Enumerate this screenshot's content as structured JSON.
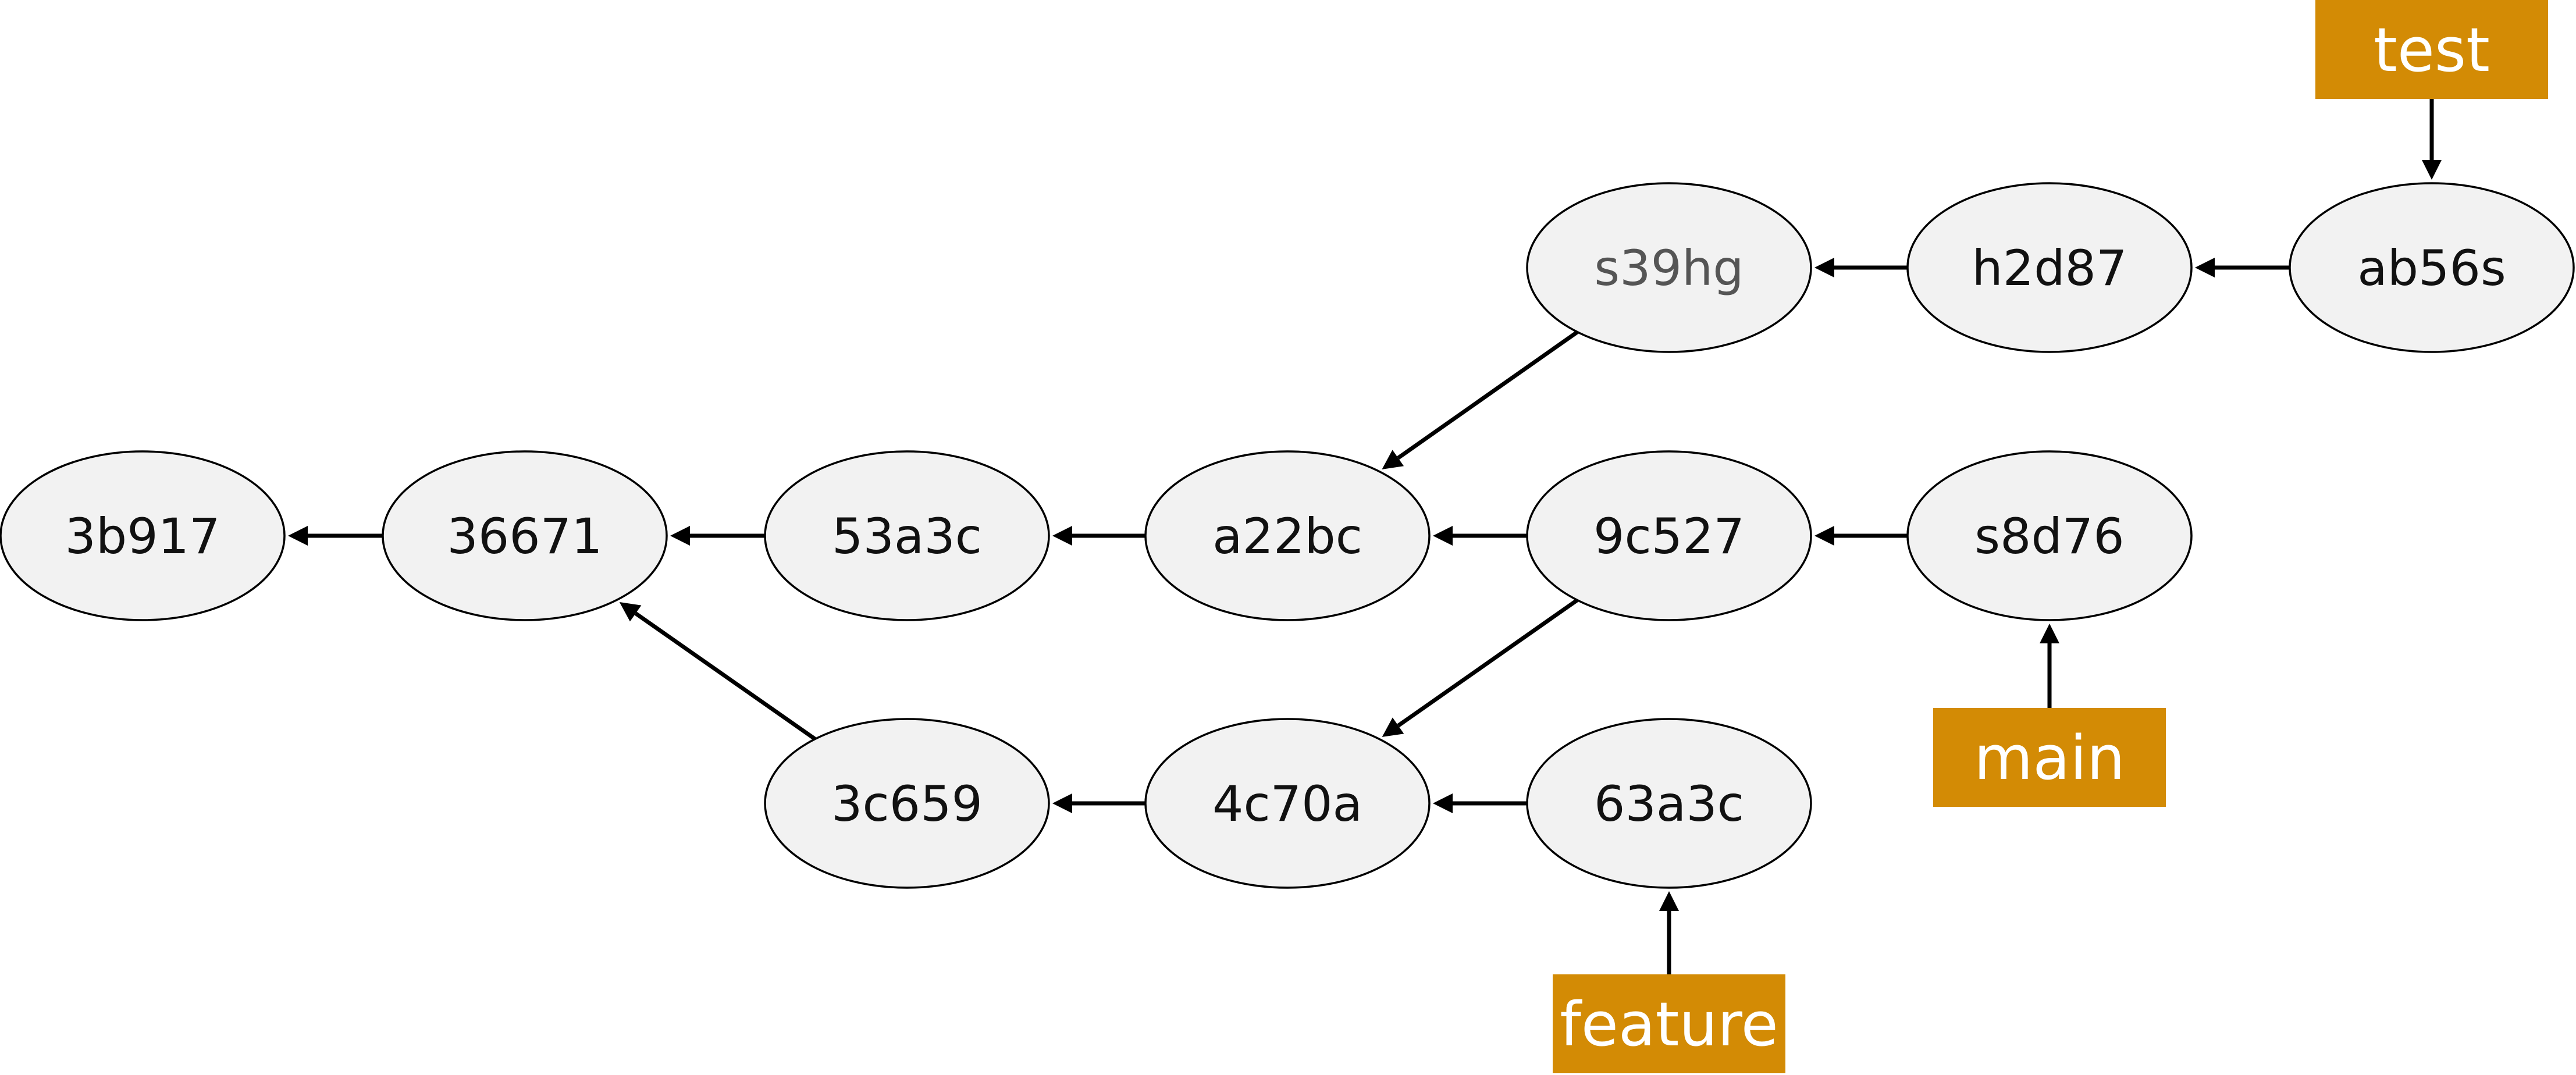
{
  "commits": [
    {
      "id": "3b917"
    },
    {
      "id": "36671"
    },
    {
      "id": "53a3c"
    },
    {
      "id": "a22bc"
    },
    {
      "id": "9c527"
    },
    {
      "id": "s8d76"
    },
    {
      "id": "s39hg"
    },
    {
      "id": "h2d87"
    },
    {
      "id": "ab56s"
    },
    {
      "id": "3c659"
    },
    {
      "id": "4c70a"
    },
    {
      "id": "63a3c"
    }
  ],
  "parents": [
    {
      "from": "36671",
      "to": "3b917"
    },
    {
      "from": "53a3c",
      "to": "36671"
    },
    {
      "from": "a22bc",
      "to": "53a3c"
    },
    {
      "from": "9c527",
      "to": "a22bc"
    },
    {
      "from": "s8d76",
      "to": "9c527"
    },
    {
      "from": "h2d87",
      "to": "s39hg"
    },
    {
      "from": "ab56s",
      "to": "h2d87"
    },
    {
      "from": "s39hg",
      "to": "a22bc"
    },
    {
      "from": "9c527",
      "to": "4c70a"
    },
    {
      "from": "63a3c",
      "to": "4c70a"
    },
    {
      "from": "4c70a",
      "to": "3c659"
    },
    {
      "from": "3c659",
      "to": "36671"
    }
  ],
  "refs": [
    {
      "name": "test",
      "target": "ab56s"
    },
    {
      "name": "main",
      "target": "s8d76"
    },
    {
      "name": "feature",
      "target": "63a3c"
    }
  ],
  "colors": {
    "ref_fill": "#d38b05",
    "node_fill": "#f2f2f2",
    "edge": "#000000"
  }
}
